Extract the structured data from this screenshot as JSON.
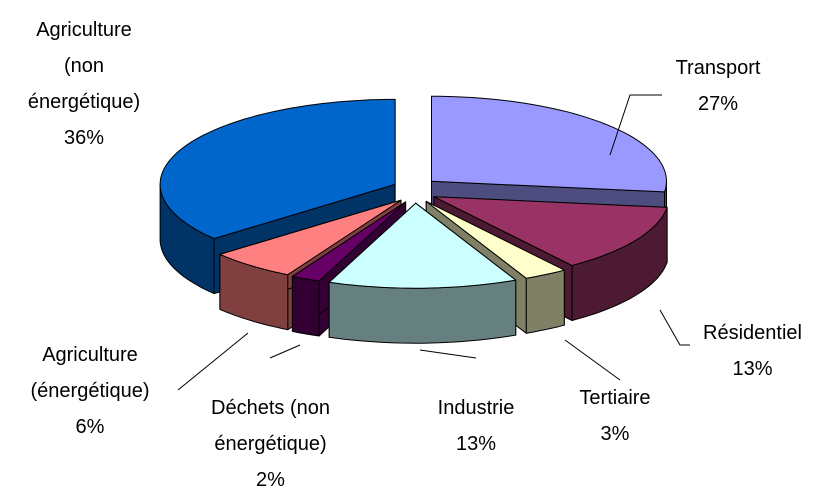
{
  "chart_data": {
    "type": "pie3d",
    "categories": [
      "Transport",
      "Résidentiel",
      "Tertiaire",
      "Industrie",
      "Déchets (non énergétique)",
      "Agriculture (énergétique)",
      "Agriculture (non énergétique)"
    ],
    "values": [
      27,
      13,
      3,
      13,
      2,
      6,
      36
    ],
    "value_labels": [
      "27%",
      "13%",
      "3%",
      "13%",
      "2%",
      "6%",
      "36%"
    ],
    "colors": [
      "#9999ff",
      "#993366",
      "#ffffcc",
      "#ccffff",
      "#660066",
      "#ff8080",
      "#0066cc"
    ]
  }
}
